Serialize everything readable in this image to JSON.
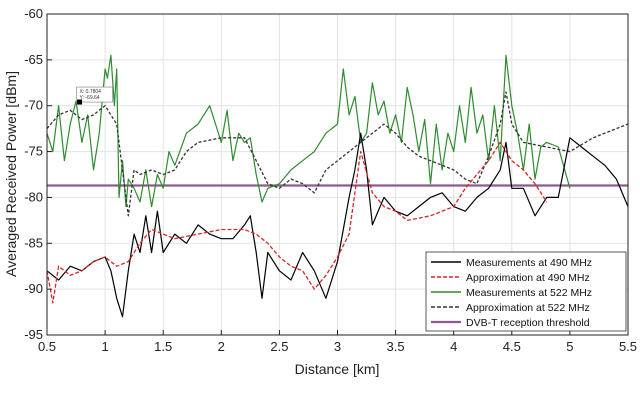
{
  "chart_data": {
    "type": "line",
    "xlabel": "Distance [km]",
    "ylabel": "Averaged Received Power [dBm]",
    "xlim": [
      0.5,
      5.5
    ],
    "ylim": [
      -95,
      -60
    ],
    "xticks": [
      "0.5",
      "1",
      "1.5",
      "2",
      "2.5",
      "3",
      "3.5",
      "4",
      "4.5",
      "5",
      "5.5"
    ],
    "yticks": [
      "-60",
      "-65",
      "-70",
      "-75",
      "-80",
      "-85",
      "-90",
      "-95"
    ],
    "grid": true,
    "legend_position": "lower-right",
    "colors": {
      "meas490": "#000000",
      "approx490": "#d62728",
      "meas522": "#2e8b2e",
      "approx522": "#333333",
      "threshold": "#8c5b8c"
    },
    "series": [
      {
        "name": "Measurements at 490 MHz",
        "style": "solid",
        "color": "#000000",
        "x": [
          0.5,
          0.6,
          0.7,
          0.8,
          0.9,
          1.0,
          1.05,
          1.1,
          1.15,
          1.2,
          1.25,
          1.3,
          1.35,
          1.4,
          1.45,
          1.5,
          1.6,
          1.7,
          1.8,
          1.9,
          2.0,
          2.1,
          2.2,
          2.25,
          2.3,
          2.35,
          2.4,
          2.5,
          2.6,
          2.7,
          2.8,
          2.9,
          3.0,
          3.1,
          3.15,
          3.2,
          3.25,
          3.3,
          3.4,
          3.5,
          3.6,
          3.7,
          3.8,
          3.9,
          4.0,
          4.1,
          4.2,
          4.3,
          4.4,
          4.45,
          4.5,
          4.6,
          4.7,
          4.8,
          4.9,
          5.0,
          5.1,
          5.2,
          5.3,
          5.4,
          5.5
        ],
        "y": [
          -88,
          -89,
          -87.5,
          -88,
          -87,
          -86.5,
          -88,
          -91,
          -93,
          -88,
          -84,
          -86,
          -82,
          -86,
          -81.5,
          -86,
          -84,
          -85,
          -83,
          -84,
          -84.5,
          -84.5,
          -83,
          -82,
          -86,
          -91,
          -86,
          -88,
          -89,
          -86,
          -88,
          -91,
          -87,
          -80,
          -77,
          -73,
          -77,
          -83,
          -80,
          -81.5,
          -82,
          -81,
          -80,
          -79.5,
          -81,
          -81.5,
          -80,
          -79,
          -77,
          -74,
          -79,
          -79,
          -82,
          -80,
          -80,
          -73.5,
          -74.5,
          -75.5,
          -76.5,
          -78,
          -81
        ]
      },
      {
        "name": "Approximation at 490 MHz",
        "style": "dashed",
        "color": "#d62728",
        "x": [
          0.5,
          0.55,
          0.6,
          0.7,
          0.8,
          0.9,
          1.0,
          1.1,
          1.2,
          1.3,
          1.4,
          1.5,
          1.6,
          1.8,
          2.0,
          2.2,
          2.3,
          2.4,
          2.5,
          2.6,
          2.7,
          2.8,
          2.9,
          3.0,
          3.1,
          3.2,
          3.3,
          3.4,
          3.5,
          3.6,
          3.8,
          4.0,
          4.1,
          4.2,
          4.3,
          4.4,
          4.5,
          4.6,
          4.7,
          4.8
        ],
        "y": [
          -88,
          -91.5,
          -87.5,
          -88.5,
          -88,
          -87,
          -86.5,
          -87.5,
          -87,
          -85,
          -83.5,
          -84,
          -84.5,
          -84,
          -83.5,
          -83.5,
          -84,
          -85,
          -86.5,
          -87.5,
          -88,
          -90,
          -88.5,
          -86.5,
          -84,
          -75,
          -79.5,
          -81,
          -81.5,
          -82.5,
          -82,
          -81,
          -79,
          -77.5,
          -76,
          -74,
          -76,
          -77,
          -78.5,
          -80.5
        ]
      },
      {
        "name": "Measurements at 522 MHz",
        "style": "solid",
        "color": "#2e8b2e",
        "x": [
          0.5,
          0.55,
          0.6,
          0.65,
          0.7,
          0.75,
          0.8,
          0.85,
          0.9,
          0.95,
          1.0,
          1.02,
          1.05,
          1.08,
          1.1,
          1.12,
          1.15,
          1.18,
          1.2,
          1.25,
          1.3,
          1.35,
          1.4,
          1.45,
          1.5,
          1.55,
          1.6,
          1.7,
          1.8,
          1.9,
          2.0,
          2.05,
          2.1,
          2.15,
          2.2,
          2.25,
          2.3,
          2.35,
          2.4,
          2.5,
          2.6,
          2.7,
          2.8,
          2.9,
          3.0,
          3.05,
          3.1,
          3.15,
          3.2,
          3.25,
          3.3,
          3.35,
          3.4,
          3.45,
          3.5,
          3.55,
          3.6,
          3.65,
          3.7,
          3.75,
          3.8,
          3.85,
          3.9,
          3.95,
          4.0,
          4.05,
          4.1,
          4.15,
          4.2,
          4.25,
          4.3,
          4.35,
          4.4,
          4.45,
          4.5,
          4.55,
          4.6,
          4.65,
          4.7,
          4.75,
          4.8,
          4.9,
          5.0
        ],
        "y": [
          -73,
          -75,
          -70,
          -76,
          -72,
          -69.5,
          -74,
          -71,
          -77,
          -73,
          -66,
          -67,
          -64.5,
          -70,
          -66,
          -80,
          -76,
          -81,
          -78,
          -79,
          -80.5,
          -77,
          -81,
          -77.5,
          -79,
          -75,
          -76.5,
          -73,
          -72,
          -70,
          -74,
          -70.5,
          -76,
          -73,
          -74,
          -73.5,
          -77.5,
          -80.5,
          -79,
          -78.5,
          -77,
          -76,
          -75,
          -73,
          -72,
          -66,
          -71,
          -69,
          -74,
          -73,
          -67.5,
          -71,
          -69.5,
          -73,
          -71,
          -74,
          -68,
          -71,
          -75,
          -71.5,
          -78.5,
          -72,
          -77,
          -73,
          -75,
          -70,
          -74,
          -68,
          -73,
          -71,
          -76,
          -70,
          -76,
          -64.5,
          -70,
          -73,
          -77,
          -72,
          -78,
          -74.5,
          -74,
          -74.5,
          -79
        ]
      },
      {
        "name": "Approximation at 522 MHz",
        "style": "dashed",
        "color": "#333333",
        "x": [
          0.5,
          0.6,
          0.7,
          0.8,
          0.9,
          1.0,
          1.1,
          1.2,
          1.25,
          1.3,
          1.4,
          1.5,
          1.6,
          1.7,
          1.8,
          2.0,
          2.2,
          2.3,
          2.4,
          2.5,
          2.6,
          2.7,
          2.8,
          2.9,
          3.0,
          3.1,
          3.2,
          3.3,
          3.4,
          3.5,
          3.6,
          3.7,
          3.8,
          3.9,
          4.0,
          4.1,
          4.2,
          4.3,
          4.4,
          4.45,
          4.5,
          4.6,
          4.8,
          5.0,
          5.2,
          5.4,
          5.5
        ],
        "y": [
          -72.5,
          -71,
          -70.5,
          -71.5,
          -71,
          -70,
          -72,
          -82,
          -77,
          -77.5,
          -77,
          -77.5,
          -77,
          -75,
          -74,
          -73.5,
          -73.5,
          -76,
          -78.5,
          -79,
          -78,
          -78.5,
          -79.5,
          -77,
          -76,
          -75,
          -74,
          -73,
          -72,
          -73,
          -74.5,
          -75.5,
          -76,
          -76.5,
          -77,
          -78,
          -78.5,
          -75.5,
          -72,
          -68.5,
          -72,
          -74,
          -74.5,
          -75,
          -73.5,
          -72.5,
          -72
        ]
      },
      {
        "name": "DVB-T reception threshold",
        "style": "solid",
        "color": "#8c5b8c",
        "x": [
          0.5,
          5.5
        ],
        "y": [
          -78.7,
          -78.7
        ]
      }
    ],
    "annotation": {
      "x": 0.78,
      "y": -69.6,
      "lines": [
        "X: 0.7804",
        "Y: -69.64"
      ]
    }
  }
}
